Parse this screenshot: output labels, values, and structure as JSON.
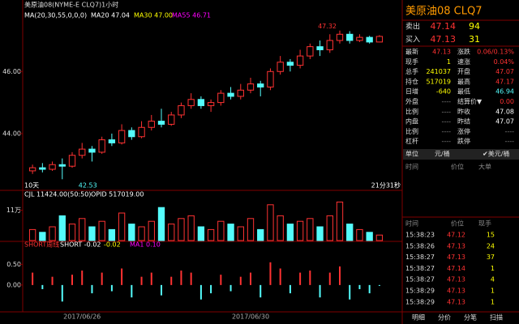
{
  "header": {
    "title": "美原油08(NYME-E CLQ7)1小时",
    "ma_label": "MA(20,30,55,0,0,0)",
    "ma20": "MA20 47.04",
    "ma30": "MA30 47.00",
    "ma55": "MA55 46.71",
    "days": "10天",
    "countdown": "21分31秒"
  },
  "chart_data": [
    {
      "type": "candlestick",
      "max_label": "47.32",
      "min_label": "42.53",
      "categories": [
        null,
        null,
        null,
        null,
        null,
        "2017/06/26",
        null,
        null,
        null,
        null,
        null,
        null,
        null,
        null,
        null,
        null,
        null,
        null,
        null,
        null,
        null,
        null,
        "2017/06/30",
        null,
        null,
        null,
        null,
        null,
        null,
        null,
        null,
        null,
        null,
        null,
        null,
        null
      ],
      "open": [
        42.8,
        42.9,
        42.85,
        43.0,
        42.95,
        43.3,
        43.5,
        43.4,
        43.8,
        43.7,
        44.1,
        43.9,
        44.2,
        44.4,
        44.3,
        44.6,
        44.9,
        45.1,
        44.9,
        45.0,
        45.3,
        45.2,
        45.4,
        45.6,
        45.5,
        46.0,
        46.3,
        46.2,
        46.5,
        46.8,
        46.7,
        47.0,
        47.2,
        47.0,
        47.1,
        46.95
      ],
      "close": [
        42.9,
        42.85,
        43.0,
        42.95,
        43.3,
        43.5,
        43.4,
        43.8,
        43.7,
        44.1,
        43.9,
        44.2,
        44.4,
        44.3,
        44.6,
        44.9,
        45.1,
        44.9,
        45.0,
        45.3,
        45.2,
        45.4,
        45.6,
        45.5,
        46.0,
        46.3,
        46.2,
        46.5,
        46.8,
        46.7,
        47.0,
        47.2,
        47.0,
        47.1,
        46.95,
        47.13
      ],
      "high": [
        43.0,
        43.05,
        43.1,
        43.2,
        43.4,
        43.7,
        43.6,
        43.9,
        44.0,
        44.3,
        44.2,
        44.4,
        44.6,
        44.8,
        44.7,
        45.0,
        45.3,
        45.2,
        45.1,
        45.4,
        45.5,
        45.6,
        45.8,
        45.7,
        46.1,
        46.5,
        46.4,
        46.7,
        46.9,
        47.0,
        47.2,
        47.32,
        47.3,
        47.2,
        47.15,
        47.17
      ],
      "low": [
        42.7,
        42.75,
        42.8,
        42.53,
        42.9,
        43.2,
        43.1,
        43.35,
        43.6,
        43.65,
        43.8,
        43.85,
        44.1,
        44.2,
        44.25,
        44.5,
        44.8,
        44.8,
        44.7,
        44.9,
        45.1,
        45.1,
        45.3,
        45.2,
        45.4,
        45.9,
        46.0,
        46.1,
        46.4,
        46.5,
        46.6,
        46.9,
        46.9,
        46.95,
        46.9,
        46.94
      ],
      "ylim": [
        42.25,
        47.625
      ],
      "yticks": [
        {
          "value": 44,
          "label": "44.00"
        },
        {
          "value": 46,
          "label": "46.00"
        }
      ],
      "up_color": "#ff3232",
      "down_color": "#54fcfc"
    },
    {
      "type": "volume",
      "label_a": "CJL  11424.00(50:50)",
      "label_b": "OPID  517019.00",
      "values": [
        4,
        3,
        5,
        9,
        6,
        8,
        5,
        7,
        4,
        10,
        6,
        5,
        7,
        12,
        6,
        8,
        9,
        5,
        4,
        7,
        6,
        5,
        8,
        4,
        13,
        9,
        6,
        7,
        8,
        5,
        9,
        14,
        6,
        4,
        3,
        2
      ],
      "ylim": [
        0,
        15
      ],
      "yticks": [
        {
          "value": 11,
          "label": "11万"
        }
      ]
    },
    {
      "type": "histogram",
      "labels": [
        "SHORT周线",
        "SHORT  -0.02",
        "-0.02",
        "MA1  0.10"
      ],
      "values": [
        0.3,
        -0.1,
        0.2,
        -0.4,
        0.25,
        0.35,
        -0.2,
        0.3,
        -0.15,
        0.4,
        -0.3,
        0.2,
        0.3,
        -0.25,
        0.2,
        0.35,
        0.3,
        -0.35,
        -0.2,
        0.25,
        -0.15,
        0.2,
        0.3,
        -0.3,
        0.55,
        0.4,
        -0.2,
        0.3,
        0.35,
        -0.3,
        0.3,
        0.45,
        -0.35,
        -0.1,
        -0.2,
        -0.02
      ],
      "ylim": [
        -0.61,
        0.86
      ],
      "yticks": [
        {
          "value": 0.5,
          "label": "0.50"
        },
        {
          "value": 0,
          "label": "0.00"
        }
      ]
    }
  ],
  "panel": {
    "title": "美原油08  CLQ7",
    "sell": [
      "卖出",
      "47.14",
      "94"
    ],
    "buy": [
      "买入",
      "47.13",
      "31"
    ],
    "quotes": [
      [
        "最新",
        "47.13",
        "涨跌",
        "0.06/0.13%"
      ],
      [
        "现手",
        "1",
        "速涨",
        "0.04%"
      ],
      [
        "总手",
        "241037",
        "开盘",
        "47.07"
      ],
      [
        "持仓",
        "517019",
        "最高",
        "47.17"
      ],
      [
        "日增",
        "-640",
        "最低",
        "46.94"
      ],
      [
        "外盘",
        "----",
        "结算价▼",
        "0.00"
      ],
      [
        "比例",
        "----",
        "昨收",
        "47.08"
      ],
      [
        "内盘",
        "----",
        "昨结",
        "47.07"
      ],
      [
        "比例",
        "----",
        "涨停",
        "----"
      ],
      [
        "杠杆",
        "----",
        "跌停",
        "----"
      ]
    ],
    "unit": [
      "单位",
      "元/桶",
      "✔美元/桶"
    ],
    "big_header": [
      "时间",
      "价位",
      "大单"
    ],
    "ticks_header": [
      "时间",
      "价位",
      "现手"
    ],
    "ticks": [
      [
        "15:38:23",
        "47.12",
        "15"
      ],
      [
        "15:38:26",
        "47.13",
        "24"
      ],
      [
        "15:38:27",
        "47.13",
        "37"
      ],
      [
        "15:38:27",
        "47.14",
        "1"
      ],
      [
        "15:38:27",
        "47.13",
        "4"
      ],
      [
        "15:38:29",
        "47.13",
        "1"
      ],
      [
        "15:38:29",
        "47.13",
        "1"
      ]
    ],
    "tabs": [
      "明细",
      "分价",
      "分笔",
      "扫描"
    ]
  }
}
